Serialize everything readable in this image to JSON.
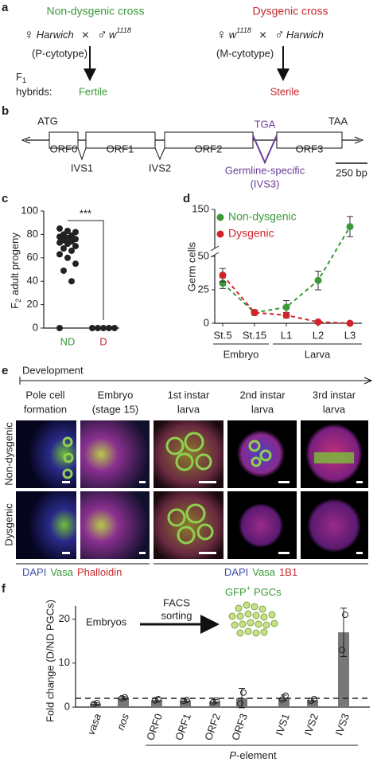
{
  "panel_labels": [
    "a",
    "b",
    "c",
    "d",
    "e",
    "f"
  ],
  "panel_a": {
    "left": {
      "title": "Non-dysgenic cross",
      "female_symbol": "♀",
      "female": "Harwich",
      "cross": "×",
      "male_symbol": "♂",
      "male": "w",
      "male_sup": "1118",
      "cytotype": "(P-cytotype)",
      "result": "Fertile"
    },
    "right": {
      "title": "Dysgenic cross",
      "female_symbol": "♀",
      "female": "w",
      "female_sup": "1118",
      "cross": "×",
      "male_symbol": "♂",
      "male": "Harwich",
      "cytotype": "(M-cytotype)",
      "result": "Sterile"
    },
    "f1": "F",
    "f1_sub": "1",
    "hybrids": "hybrids:"
  },
  "panel_b": {
    "start": "ATG",
    "stop": "TAA",
    "orfs": [
      "ORF0",
      "ORF1",
      "ORF2",
      "ORF3"
    ],
    "introns": [
      "IVS1",
      "IVS2"
    ],
    "ivs3_codon": "TGA",
    "ivs3_label": "Germline-specific",
    "ivs3_name": "(IVS3)",
    "scale": "250 bp"
  },
  "panel_e": {
    "timeline": "Development",
    "stages": [
      [
        "Pole cell",
        "formation"
      ],
      [
        "Embryo",
        "(stage 15)"
      ],
      [
        "1st instar",
        "larva"
      ],
      [
        "2nd instar",
        "larva"
      ],
      [
        "3rd instar",
        "larva"
      ]
    ],
    "rows": [
      "Non-dysgenic",
      "Dysgenic"
    ],
    "stains_left": [
      {
        "text": "DAPI",
        "color": "#3b4fa8"
      },
      {
        "text": "Vasa",
        "color": "#3a9a3a"
      },
      {
        "text": "Phalloidin",
        "color": "#c8282e"
      }
    ],
    "stains_right": [
      {
        "text": "DAPI",
        "color": "#3b4fa8"
      },
      {
        "text": "Vasa",
        "color": "#3a9a3a"
      },
      {
        "text": "1B1",
        "color": "#c8282e"
      }
    ]
  },
  "chart_data": [
    {
      "type": "strip",
      "ylabel": "F",
      "ylabel_sub": "2",
      "ylabel_rest": "adult progeny",
      "categories": [
        "ND",
        "D"
      ],
      "category_colors": [
        "#3a9a3a",
        "#c8282e"
      ],
      "color": "#222",
      "values": [
        [
          85,
          83,
          82,
          80,
          79,
          78,
          77,
          76,
          75,
          74,
          73,
          72,
          70,
          68,
          66,
          63,
          60,
          55,
          49,
          40,
          0
        ],
        [
          0,
          0,
          0,
          0,
          0
        ]
      ],
      "ylim": [
        0,
        100
      ],
      "yticks": [
        0,
        20,
        40,
        60,
        80,
        100
      ],
      "annotation": "***"
    },
    {
      "type": "line",
      "ylabel": "Germ cells",
      "categories": [
        "St.5",
        "St.15",
        "L1",
        "L2",
        "L3"
      ],
      "groups": [
        "Embryo",
        "Larva"
      ],
      "ylim": [
        0,
        150
      ],
      "yticks": [
        0,
        25,
        50,
        150
      ],
      "axis_break": 50,
      "line_style": "dashed",
      "series": [
        {
          "name": "Non-dysgenic",
          "color": "#3a9a3a",
          "values": [
            30,
            8,
            12,
            32,
            104
          ],
          "errors": [
            4,
            2,
            5,
            7,
            27
          ]
        },
        {
          "name": "Dysgenic",
          "color": "#d2232a",
          "values": [
            36,
            8,
            6,
            1,
            0
          ],
          "errors": [
            5,
            2,
            2,
            0.5,
            0.5
          ]
        }
      ]
    },
    {
      "type": "bar",
      "ylabel": "Fold change (D/ND PGCs)",
      "categories": [
        "vasa",
        "nos",
        "ORF0",
        "ORF1",
        "ORF2",
        "ORF3",
        "IVS1",
        "IVS2",
        "IVS3"
      ],
      "italic_categories": [
        "vasa",
        "nos"
      ],
      "values": [
        0.8,
        2.1,
        1.65,
        1.5,
        1.3,
        2.05,
        2.15,
        1.6,
        17
      ],
      "errors": [
        0.2,
        0.3,
        0.5,
        0.3,
        0.4,
        2.2,
        0.6,
        0.4,
        5.5
      ],
      "points": [
        [
          0.7,
          0.9
        ],
        [
          2.0,
          2.2
        ],
        [
          1.5,
          1.8
        ],
        [
          1.4,
          1.6
        ],
        [
          1.1,
          1.5
        ],
        [
          0.8,
          3.3
        ],
        [
          1.7,
          2.6
        ],
        [
          1.4,
          1.8
        ],
        [
          13,
          21
        ]
      ],
      "color": "#777",
      "ylim": [
        0,
        23
      ],
      "yticks": [
        0,
        10,
        20
      ],
      "reference_line": 2,
      "group_label_italic": "P",
      "group_label": "-element",
      "annotations": {
        "embryos": "Embryos",
        "facs": "FACS",
        "sorting": "sorting",
        "gfp": "GFP",
        "gfp_sup": "+",
        "pgcs": "PGCs"
      }
    }
  ]
}
